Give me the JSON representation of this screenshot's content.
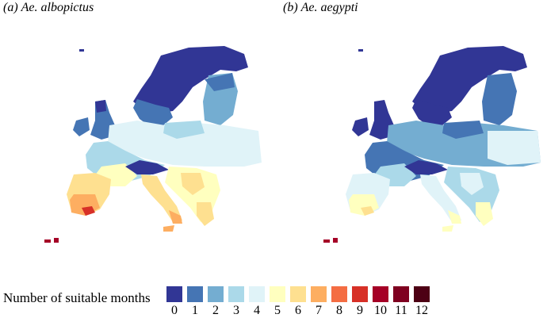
{
  "panels": [
    {
      "tag": "(a)",
      "species": "Ae. albopictus"
    },
    {
      "tag": "(b)",
      "species": "Ae. aegypti"
    }
  ],
  "legend": {
    "label": "Number of suitable months",
    "entries": [
      {
        "value": "0",
        "color": "#313695"
      },
      {
        "value": "1",
        "color": "#4575b4"
      },
      {
        "value": "2",
        "color": "#74add1"
      },
      {
        "value": "3",
        "color": "#abd9e9"
      },
      {
        "value": "4",
        "color": "#e0f3f8"
      },
      {
        "value": "5",
        "color": "#ffffbf"
      },
      {
        "value": "6",
        "color": "#fee090"
      },
      {
        "value": "7",
        "color": "#fdae61"
      },
      {
        "value": "8",
        "color": "#f46d43"
      },
      {
        "value": "9",
        "color": "#d73027"
      },
      {
        "value": "10",
        "color": "#a50026"
      },
      {
        "value": "11",
        "color": "#7f0020"
      },
      {
        "value": "12",
        "color": "#4d0014"
      }
    ]
  }
}
